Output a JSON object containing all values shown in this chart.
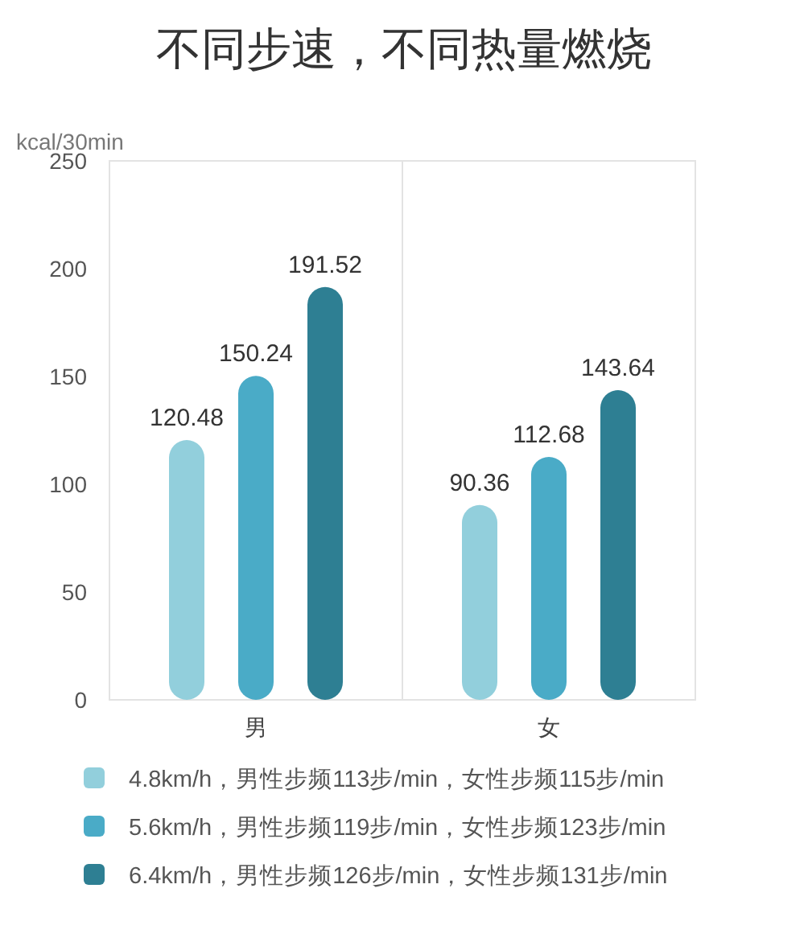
{
  "chart_data": {
    "type": "bar",
    "title": "不同步速，不同热量燃烧",
    "ylabel": "kcal/30min",
    "categories": [
      "男",
      "女"
    ],
    "series": [
      {
        "name": "4.8km/h，男性步频113步/min，女性步频115步/min",
        "color": "#92cfdc",
        "values": [
          120.48,
          90.36
        ]
      },
      {
        "name": "5.6km/h，男性步频119步/min，女性步频123步/min",
        "color": "#4aabc7",
        "values": [
          150.24,
          112.68
        ]
      },
      {
        "name": "6.4km/h，男性步频126步/min，女性步频131步/min",
        "color": "#2e7f93",
        "values": [
          191.52,
          143.64
        ]
      }
    ],
    "ylim": [
      0,
      250
    ],
    "yticks": [
      0,
      50,
      100,
      150,
      200,
      250
    ],
    "data_labels": true,
    "legend": "bottom",
    "grid": false
  }
}
